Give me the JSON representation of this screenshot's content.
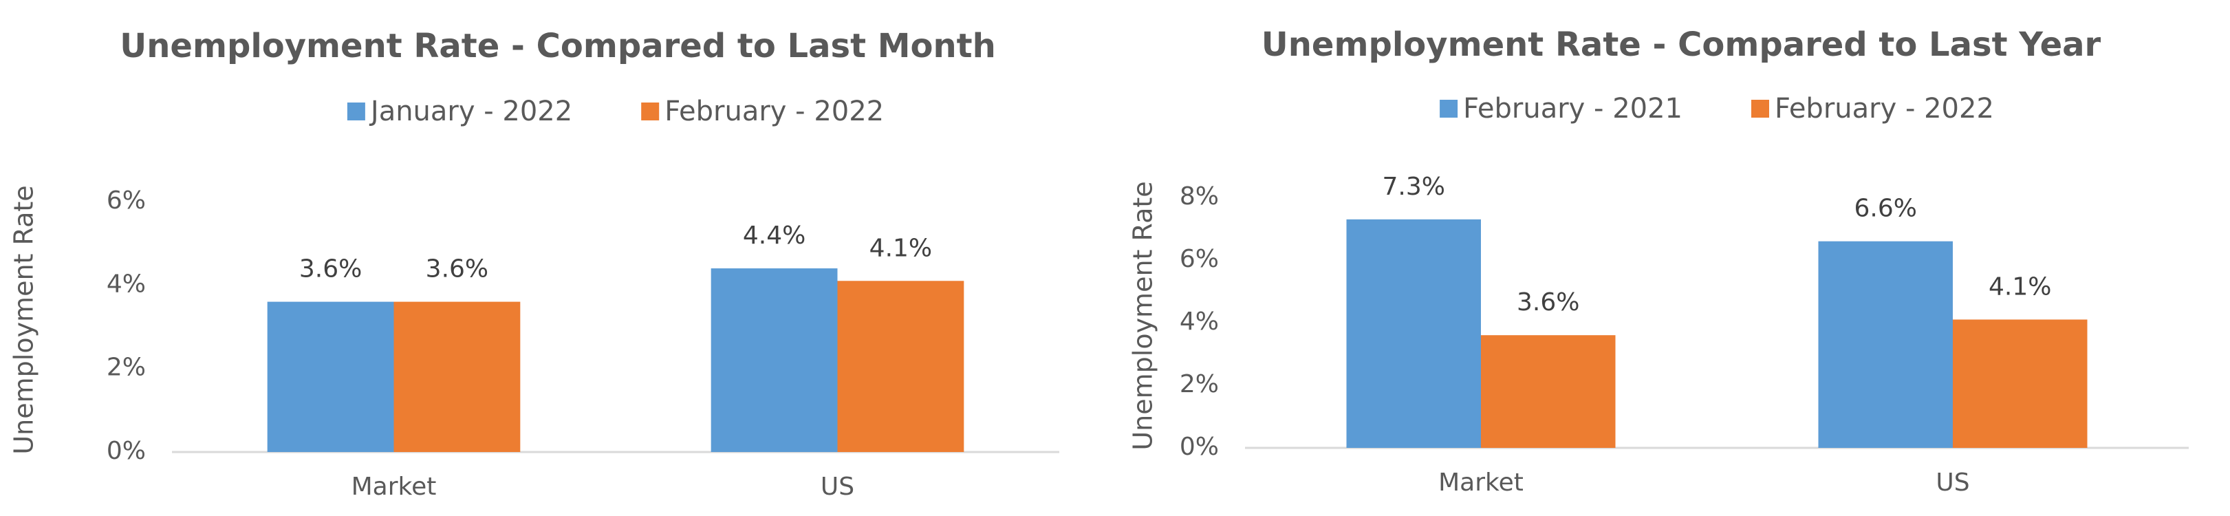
{
  "chart_data": [
    {
      "type": "bar",
      "title": "Unemployment Rate - Compared to Last Month",
      "y_label": "Unemployment Rate",
      "categories": [
        "Market",
        "US"
      ],
      "series": [
        {
          "name": "January - 2022",
          "color": "#5b9bd5",
          "values": [
            3.6,
            4.4
          ],
          "value_labels": [
            "3.6%",
            "4.4%"
          ]
        },
        {
          "name": "February - 2022",
          "color": "#ed7d31",
          "values": [
            3.6,
            4.1
          ],
          "value_labels": [
            "3.6%",
            "4.1%"
          ]
        }
      ],
      "ylim": [
        0,
        6
      ],
      "yticks": [
        {
          "value": 0,
          "label": "0%"
        },
        {
          "value": 2,
          "label": "2%"
        },
        {
          "value": 4,
          "label": "4%"
        },
        {
          "value": 6,
          "label": "6%"
        }
      ],
      "legend": "top"
    },
    {
      "type": "bar",
      "title": "Unemployment Rate - Compared to Last Year",
      "y_label": "Unemployment Rate",
      "categories": [
        "Market",
        "US"
      ],
      "series": [
        {
          "name": "February - 2021",
          "color": "#5b9bd5",
          "values": [
            7.3,
            6.6
          ],
          "value_labels": [
            "7.3%",
            "6.6%"
          ]
        },
        {
          "name": "February - 2022",
          "color": "#ed7d31",
          "values": [
            3.6,
            4.1
          ],
          "value_labels": [
            "3.6%",
            "4.1%"
          ]
        }
      ],
      "ylim": [
        0,
        8
      ],
      "yticks": [
        {
          "value": 0,
          "label": "0%"
        },
        {
          "value": 2,
          "label": "2%"
        },
        {
          "value": 4,
          "label": "4%"
        },
        {
          "value": 6,
          "label": "6%"
        },
        {
          "value": 8,
          "label": "8%"
        }
      ],
      "legend": "top"
    }
  ]
}
